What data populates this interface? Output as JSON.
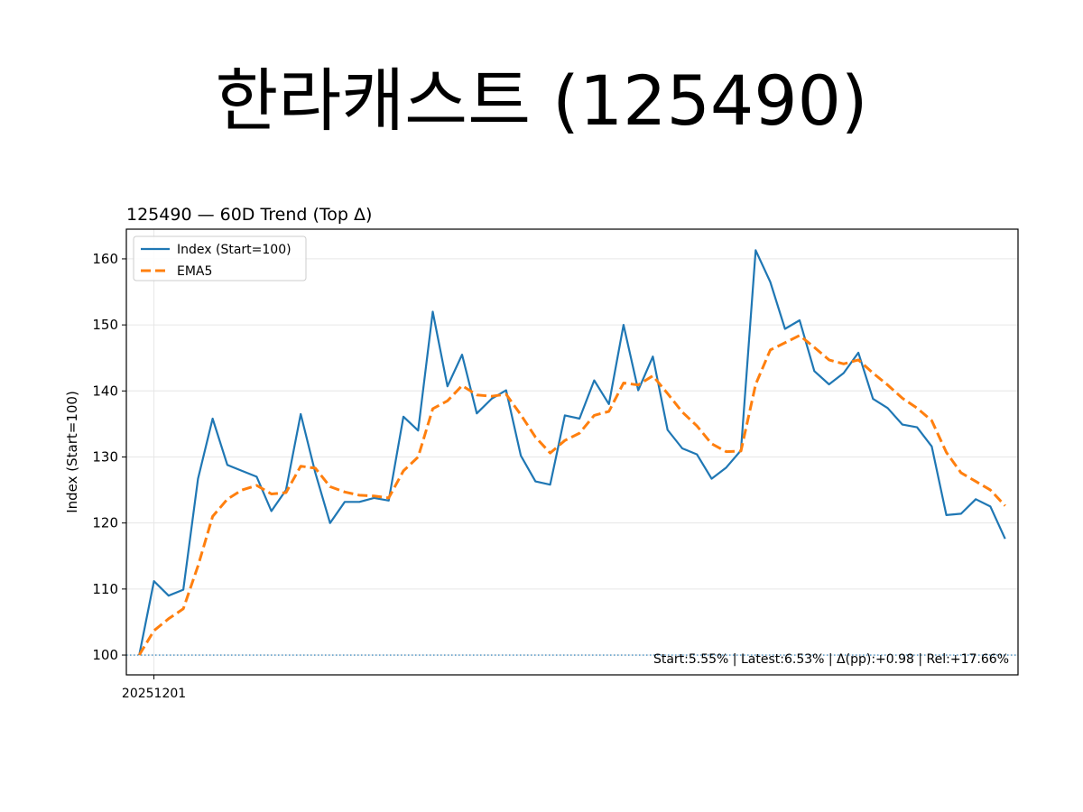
{
  "page_title": "한라캐스트 (125490)",
  "chart_data": {
    "type": "line",
    "title": "125490 — 60D Trend (Top Δ)",
    "xlabel": "",
    "ylabel": "Index (Start=100)",
    "ylim": [
      97,
      164.5
    ],
    "yticks": [
      100,
      110,
      120,
      130,
      140,
      150,
      160
    ],
    "xtick_labels": [
      {
        "label": "20251201",
        "index": 1
      }
    ],
    "baseline": 100,
    "annotation": "Start:5.55% | Latest:6.53% | Δ(pp):+0.98 | Rel:+17.66%",
    "grid": true,
    "legend_position": "top-left",
    "series": [
      {
        "name": "Index (Start=100)",
        "color": "#1f77b4",
        "style": "solid",
        "values": [
          100.0,
          111.2,
          109.0,
          109.9,
          126.7,
          135.8,
          128.8,
          127.9,
          127.0,
          121.8,
          125.0,
          136.5,
          127.6,
          120.0,
          123.2,
          123.2,
          123.8,
          123.4,
          136.1,
          134.0,
          152.0,
          140.7,
          145.5,
          136.6,
          138.8,
          140.1,
          130.2,
          126.3,
          125.8,
          136.3,
          135.8,
          141.6,
          138.0,
          150.0,
          140.1,
          145.2,
          134.1,
          131.3,
          130.4,
          126.7,
          128.4,
          131.0,
          161.3,
          156.5,
          149.4,
          150.7,
          143.0,
          141.0,
          142.7,
          145.8,
          138.8,
          137.4,
          134.9,
          134.5,
          131.6,
          121.2,
          121.4,
          123.6,
          122.5,
          117.6
        ]
      },
      {
        "name": "EMA5",
        "color": "#ff7f0e",
        "style": "dashed",
        "values": [
          100.0,
          103.7,
          105.5,
          107.0,
          113.5,
          121.0,
          123.6,
          125.0,
          125.7,
          124.4,
          124.6,
          128.6,
          128.3,
          125.5,
          124.7,
          124.2,
          124.1,
          123.8,
          127.9,
          130.0,
          137.3,
          138.5,
          140.8,
          139.4,
          139.2,
          139.5,
          136.4,
          133.0,
          130.6,
          132.5,
          133.6,
          136.3,
          136.9,
          141.2,
          140.9,
          142.3,
          139.6,
          136.8,
          134.7,
          132.0,
          130.8,
          130.9,
          141.0,
          146.2,
          147.3,
          148.4,
          146.6,
          144.7,
          144.1,
          144.7,
          142.7,
          140.9,
          138.9,
          137.4,
          135.5,
          130.7,
          127.6,
          126.3,
          125.0,
          122.6
        ]
      }
    ]
  }
}
